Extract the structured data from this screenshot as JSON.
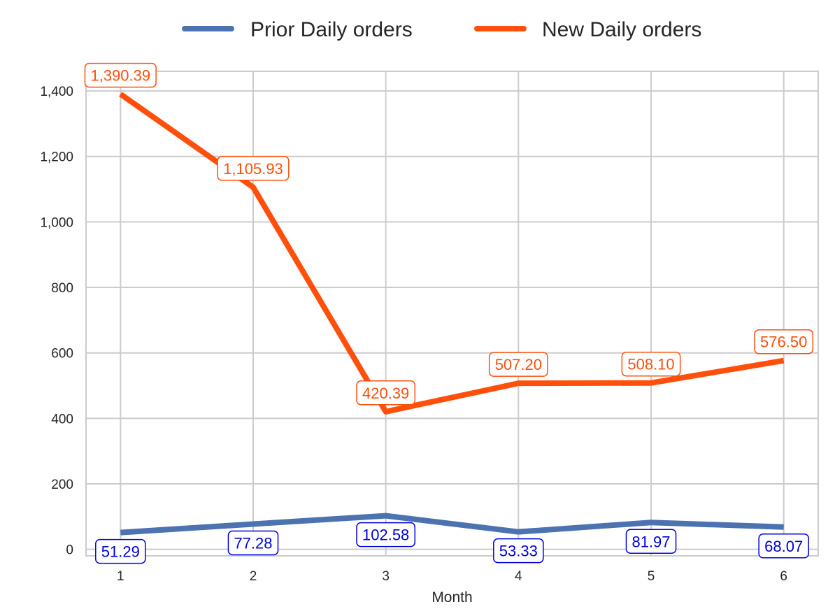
{
  "chart_data": {
    "type": "line",
    "title": "",
    "xlabel": "Month",
    "ylabel": "",
    "x": [
      1,
      2,
      3,
      4,
      5,
      6
    ],
    "x_tick_labels": [
      "1",
      "2",
      "3",
      "4",
      "5",
      "6"
    ],
    "y_ticks": [
      0,
      200,
      400,
      600,
      800,
      1000,
      1200,
      1400
    ],
    "y_tick_labels": [
      "0",
      "200",
      "400",
      "600",
      "800",
      "1,000",
      "1,200",
      "1,400"
    ],
    "xlim": [
      0.74,
      6.26
    ],
    "ylim": [
      -20,
      1460
    ],
    "grid": true,
    "legend_position": "top-center",
    "series": [
      {
        "name": "Prior Daily orders",
        "color": "#4c72b0",
        "label_color": "#0000dd",
        "values": [
          51.29,
          77.28,
          102.58,
          53.33,
          81.97,
          68.07
        ],
        "labels": [
          "51.29",
          "77.28",
          "102.58",
          "53.33",
          "81.97",
          "68.07"
        ],
        "label_placement": "below"
      },
      {
        "name": "New Daily orders",
        "color": "#ff4f0b",
        "label_color": "#ff4f0b",
        "values": [
          1390.39,
          1105.93,
          420.39,
          507.2,
          508.1,
          576.5
        ],
        "labels": [
          "1,390.39",
          "1,105.93",
          "420.39",
          "507.20",
          "508.10",
          "576.50"
        ],
        "label_placement": "above"
      }
    ]
  }
}
